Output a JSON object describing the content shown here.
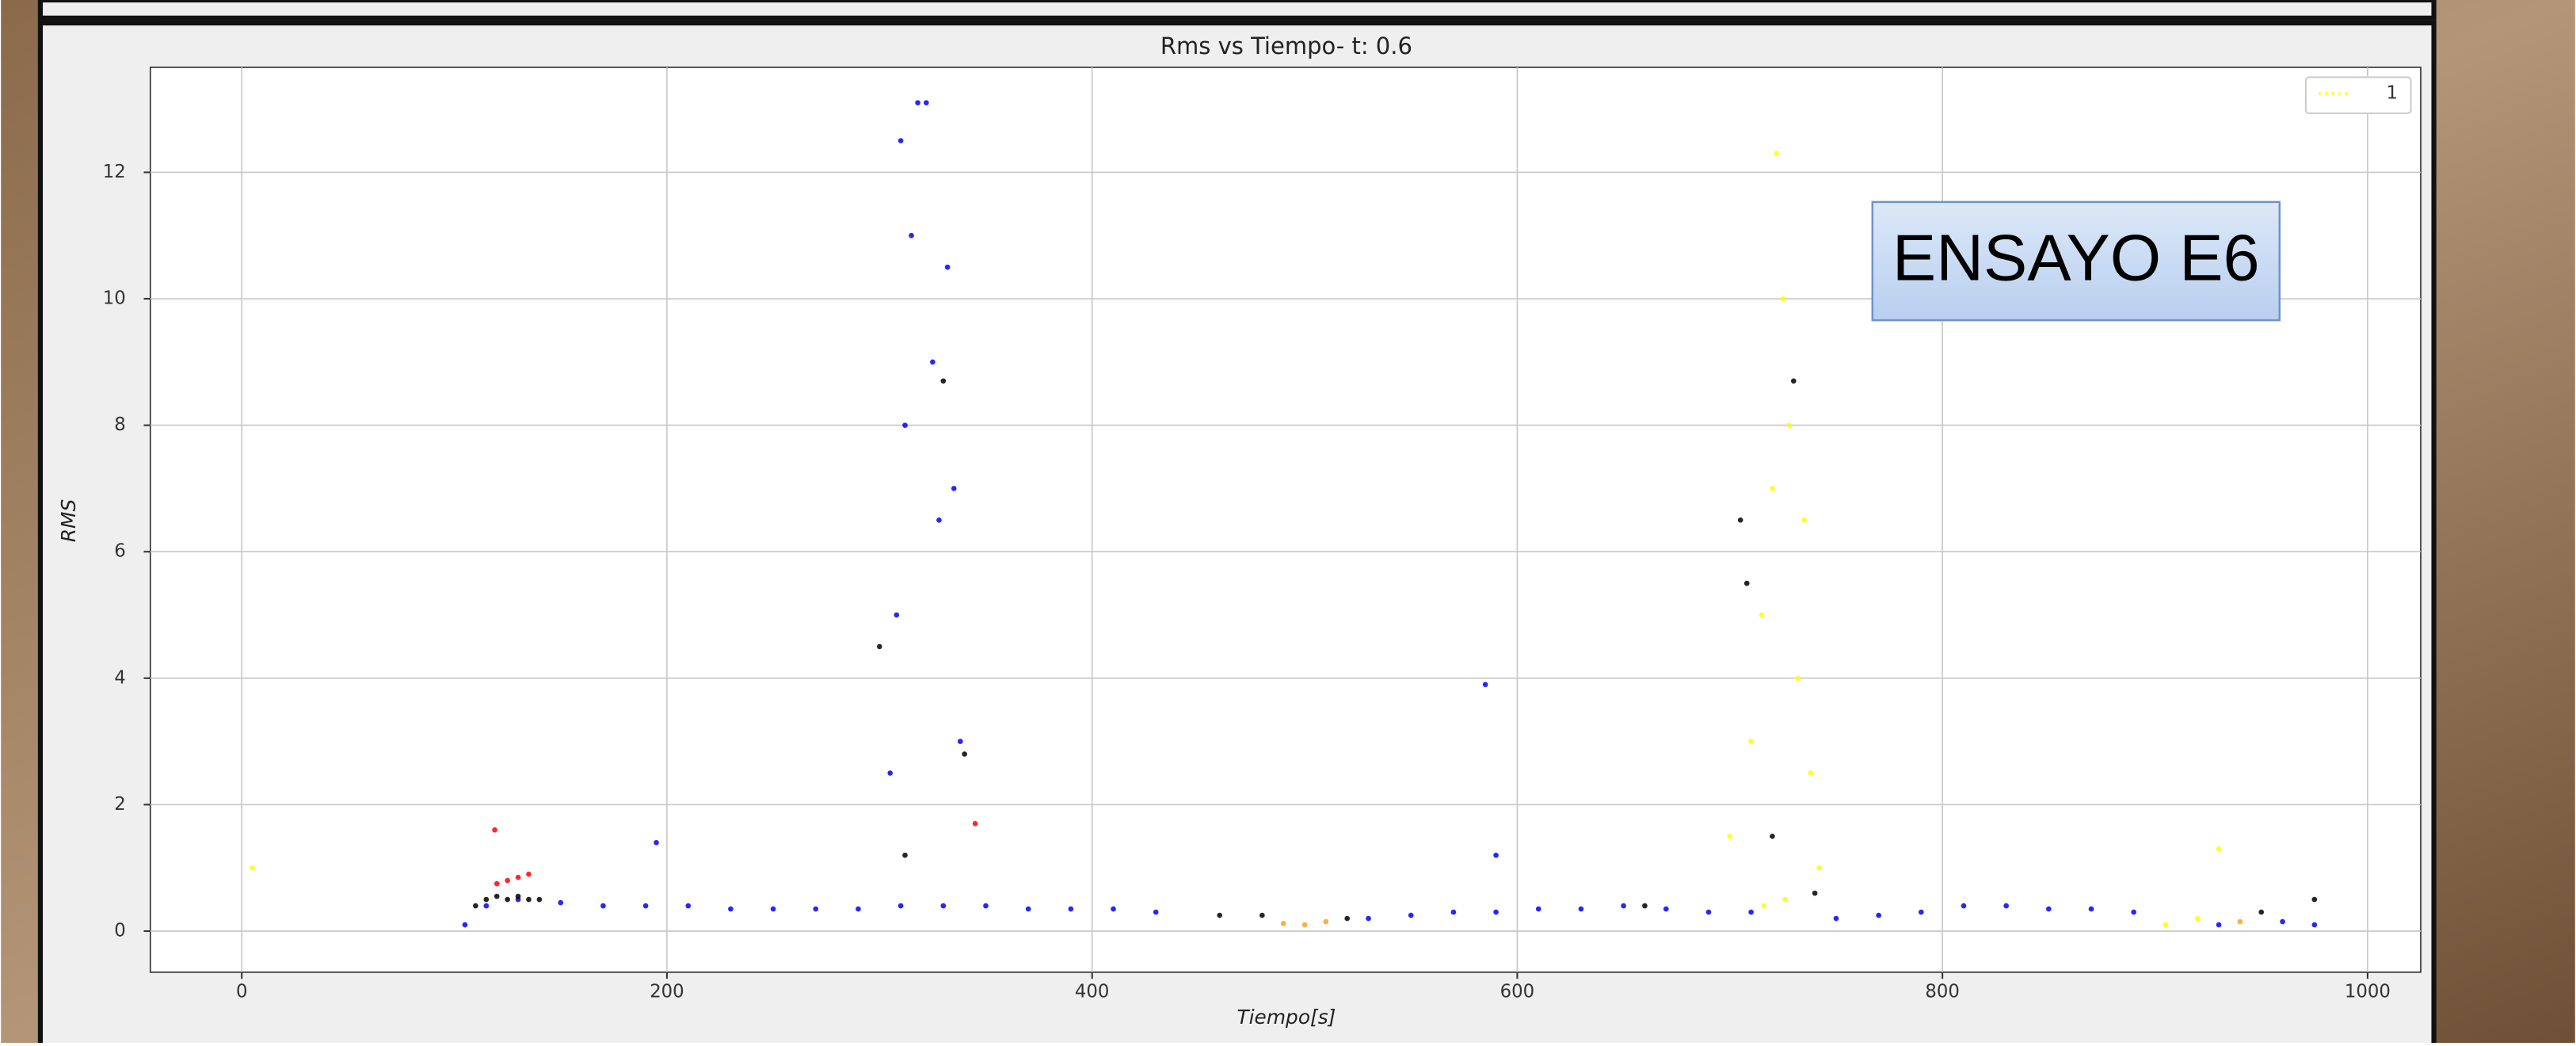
{
  "chart_data": {
    "type": "scatter",
    "title": "Rms vs Tiempo- t: 0.6",
    "x_label": "Tiempo[s]",
    "y_label": "RMS",
    "annotation": "ENSAYO E6",
    "xlim": [
      -43,
      1025
    ],
    "ylim": [
      -0.65,
      13.66
    ],
    "xticks": [
      0,
      200,
      400,
      600,
      800,
      1000
    ],
    "yticks": [
      0,
      2,
      4,
      6,
      8,
      10,
      12
    ],
    "grid": true,
    "legend_position": "upper right",
    "series": [
      {
        "color": "#0000ff",
        "x": [
          105,
          115,
          130,
          150,
          170,
          190,
          210,
          230,
          250,
          270,
          290,
          310,
          330,
          350,
          370,
          390,
          410,
          430,
          530,
          550,
          570,
          590,
          610,
          630,
          650,
          670,
          690,
          710,
          750,
          770,
          790,
          810,
          830,
          850,
          870,
          890,
          930,
          960,
          975,
          305,
          308,
          312,
          315,
          318,
          322,
          325,
          328,
          332,
          335,
          338,
          310,
          585,
          195,
          590
        ],
        "values": [
          0.1,
          0.4,
          0.5,
          0.45,
          0.4,
          0.4,
          0.4,
          0.35,
          0.35,
          0.35,
          0.35,
          0.4,
          0.4,
          0.4,
          0.35,
          0.35,
          0.35,
          0.3,
          0.2,
          0.25,
          0.3,
          0.3,
          0.35,
          0.35,
          0.4,
          0.35,
          0.3,
          0.3,
          0.2,
          0.25,
          0.3,
          0.4,
          0.4,
          0.35,
          0.35,
          0.3,
          0.1,
          0.15,
          0.1,
          2.5,
          5,
          8,
          11,
          13.1,
          13.1,
          9,
          6.5,
          10.5,
          7,
          3,
          12.5,
          3.9,
          1.4,
          1.2
        ]
      },
      {
        "color": "#000000",
        "x": [
          110,
          115,
          120,
          125,
          130,
          135,
          140,
          300,
          312,
          330,
          340,
          460,
          480,
          520,
          660,
          705,
          708,
          720,
          730,
          740,
          950,
          975
        ],
        "values": [
          0.4,
          0.5,
          0.55,
          0.5,
          0.55,
          0.5,
          0.5,
          4.5,
          1.2,
          8.7,
          2.8,
          0.25,
          0.25,
          0.2,
          0.4,
          6.5,
          5.5,
          1.5,
          8.7,
          0.6,
          0.3,
          0.5
        ]
      },
      {
        "color": "#ff0000",
        "x": [
          119,
          120,
          125,
          130,
          135,
          345
        ],
        "values": [
          1.6,
          0.75,
          0.8,
          0.85,
          0.9,
          1.7
        ]
      },
      {
        "color": "#ff9f1a",
        "x": [
          490,
          500,
          510,
          940
        ],
        "values": [
          0.12,
          0.1,
          0.15,
          0.15
        ]
      },
      {
        "name": "1",
        "color": "#ffff00",
        "x": [
          700,
          710,
          715,
          720,
          722,
          725,
          728,
          732,
          735,
          738,
          742,
          726,
          716,
          905,
          920,
          930,
          5
        ],
        "values": [
          1.5,
          3,
          5,
          7,
          12.3,
          10,
          8,
          4,
          6.5,
          2.5,
          1,
          0.5,
          0.4,
          0.1,
          0.2,
          1.3,
          1.0
        ]
      }
    ]
  }
}
